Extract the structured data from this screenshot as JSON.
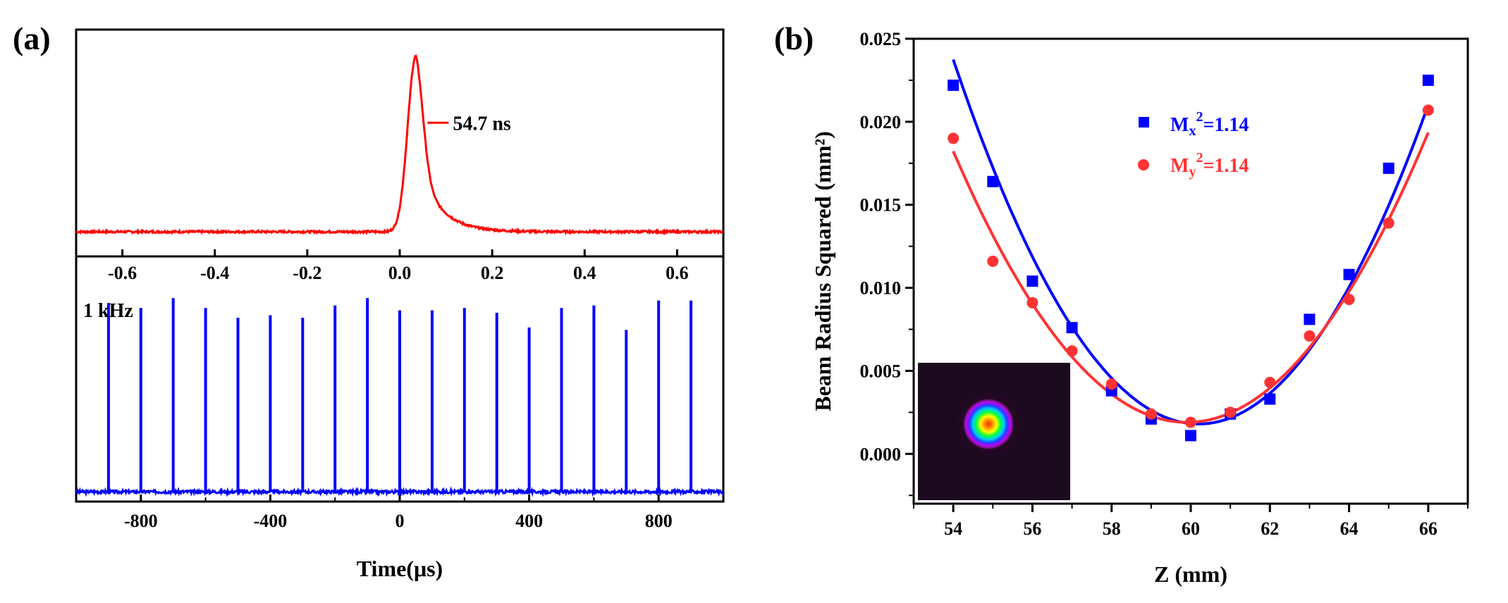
{
  "panel_labels": {
    "a": "(a)",
    "b": "(b)"
  },
  "chart_data": [
    {
      "type": "line",
      "panel": "(a) top",
      "title": "",
      "xlabel": "",
      "ylabel": "",
      "xlim": [
        -0.7,
        0.7
      ],
      "xticks": [
        -0.6,
        -0.4,
        -0.2,
        0.0,
        0.2,
        0.4,
        0.6
      ],
      "xtick_labels": [
        "-0.6",
        "-0.4",
        "-0.2",
        "0.0",
        "0.2",
        "0.4",
        "0.6"
      ],
      "ylim": [
        0,
        1.05
      ],
      "y_axis_visible": false,
      "grid": false,
      "color": "#ff0000",
      "pulse": {
        "center": 0.035,
        "rise_width": 0.025,
        "fall_tau": 0.045,
        "baseline": 0.0,
        "peak": 1.0
      },
      "annotation": {
        "text": "54.7 ns",
        "x": 0.06,
        "y": 0.62
      }
    },
    {
      "type": "line",
      "panel": "(a) bottom",
      "title": "",
      "xlabel": "Time(μs)",
      "ylabel": "",
      "xlim": [
        -1000,
        1000
      ],
      "xticks": [
        -800,
        -400,
        0,
        400,
        800
      ],
      "xtick_labels": [
        "-800",
        "-400",
        "0",
        "400",
        "800"
      ],
      "ylim": [
        0,
        1.0
      ],
      "y_axis_visible": false,
      "grid": false,
      "color": "#0000ff",
      "annotation": {
        "text": "1 kHz"
      },
      "pulse_times": [
        -900,
        -800,
        -700,
        -600,
        -500,
        -400,
        -300,
        -200,
        -100,
        0,
        100,
        200,
        300,
        400,
        500,
        600,
        700,
        800,
        900
      ],
      "pulse_heights": [
        0.81,
        0.79,
        0.83,
        0.79,
        0.75,
        0.76,
        0.75,
        0.8,
        0.83,
        0.78,
        0.78,
        0.79,
        0.77,
        0.71,
        0.79,
        0.8,
        0.7,
        0.82,
        0.82
      ],
      "baseline": 0.04
    },
    {
      "type": "scatter",
      "panel": "(b)",
      "title": "",
      "xlabel": "Z (mm)",
      "ylabel": "Beam Radius Squared (mm²)",
      "xlim": [
        53,
        67
      ],
      "ylim": [
        -0.003,
        0.025
      ],
      "xticks": [
        54,
        56,
        58,
        60,
        62,
        64,
        66
      ],
      "yticks": [
        0.0,
        0.005,
        0.01,
        0.015,
        0.02,
        0.025
      ],
      "xtick_labels": [
        "54",
        "56",
        "58",
        "60",
        "62",
        "64",
        "66"
      ],
      "ytick_labels": [
        "0.000",
        "0.005",
        "0.010",
        "0.015",
        "0.020",
        "0.025"
      ],
      "grid": false,
      "legend_position": "upper-center",
      "series": [
        {
          "name": "Mx²=1.14",
          "legend_base": "M",
          "legend_sub": "x",
          "legend_sup": "2",
          "legend_tail": "=1.14",
          "marker": "square",
          "color": "#0000ff",
          "x": [
            54,
            55,
            56,
            57,
            58,
            59,
            60,
            61,
            62,
            63,
            64,
            65,
            66
          ],
          "y": [
            0.0222,
            0.0164,
            0.0104,
            0.0076,
            0.0038,
            0.0021,
            0.0011,
            0.0024,
            0.0033,
            0.0081,
            0.0108,
            0.0172,
            0.0225
          ],
          "fit": {
            "z0": 60.2,
            "w0sq": 0.0018,
            "a": 0.000571
          }
        },
        {
          "name": "My²=1.14",
          "legend_base": "M",
          "legend_sub": "y",
          "legend_sup": "2",
          "legend_tail": "=1.14",
          "marker": "circle",
          "color": "#ff3333",
          "x": [
            54,
            55,
            56,
            57,
            58,
            59,
            60,
            61,
            62,
            63,
            64,
            65,
            66
          ],
          "y": [
            0.019,
            0.0116,
            0.0091,
            0.0062,
            0.0042,
            0.0024,
            0.0019,
            0.0025,
            0.0043,
            0.0071,
            0.0093,
            0.0139,
            0.0207
          ],
          "fit": {
            "z0": 59.9,
            "w0sq": 0.0019,
            "a": 0.000469
          }
        }
      ],
      "inset": {
        "type": "beam-profile-image"
      }
    }
  ]
}
